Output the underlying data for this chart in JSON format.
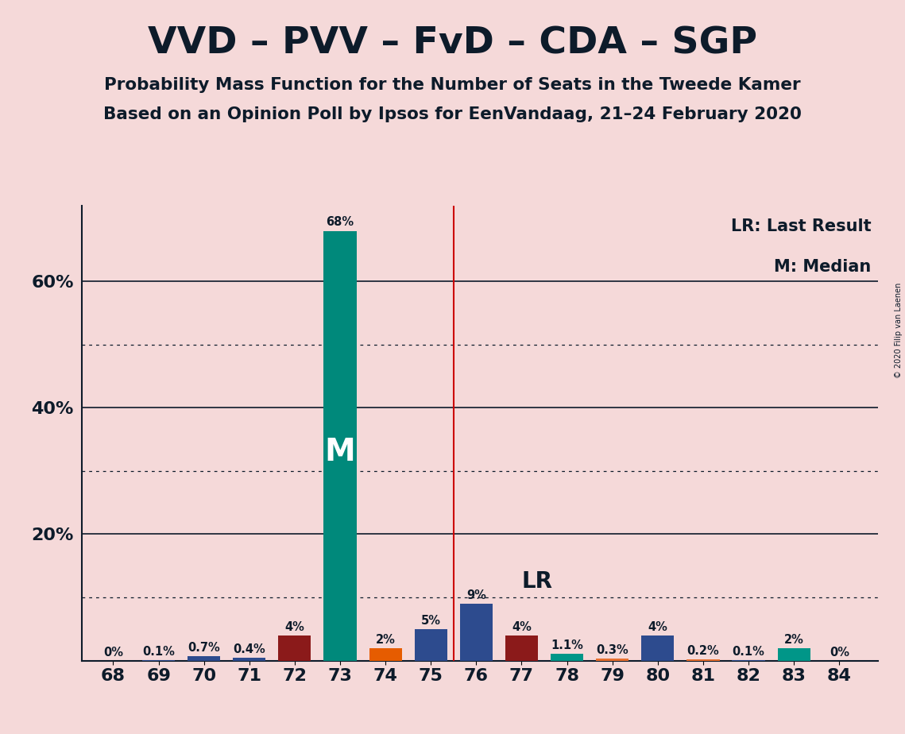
{
  "title": "VVD – PVV – FvD – CDA – SGP",
  "subtitle1": "Probability Mass Function for the Number of Seats in the Tweede Kamer",
  "subtitle2": "Based on an Opinion Poll by Ipsos for EenVandaag, 21–24 February 2020",
  "copyright": "© 2020 Filip van Laenen",
  "background_color": "#f5d9d9",
  "text_color": "#0d1b2a",
  "seats": [
    68,
    69,
    70,
    71,
    72,
    73,
    74,
    75,
    76,
    77,
    78,
    79,
    80,
    81,
    82,
    83,
    84
  ],
  "probabilities": [
    0.0,
    0.1,
    0.7,
    0.4,
    4.0,
    68.0,
    2.0,
    5.0,
    9.0,
    4.0,
    1.1,
    0.3,
    4.0,
    0.2,
    0.1,
    2.0,
    0.0
  ],
  "labels": [
    "0%",
    "0.1%",
    "0.7%",
    "0.4%",
    "4%",
    "68%",
    "2%",
    "5%",
    "9%",
    "4%",
    "1.1%",
    "0.3%",
    "4%",
    "0.2%",
    "0.1%",
    "2%",
    "0%"
  ],
  "bar_colors": [
    "#2d4b8e",
    "#2d4b8e",
    "#2d4b8e",
    "#2d4b8e",
    "#8b1a1a",
    "#00897b",
    "#e65c00",
    "#2d4b8e",
    "#2d4b8e",
    "#8b1a1a",
    "#009688",
    "#e87030",
    "#2d4b8e",
    "#e87030",
    "#2d4b8e",
    "#009688",
    "#e87030"
  ],
  "median_seat": 73,
  "last_result_seat": 75.5,
  "median_label": "M",
  "lr_label": "LR",
  "legend_lr": "LR: Last Result",
  "legend_m": "M: Median",
  "ylim_max": 72,
  "bar_width": 0.72,
  "xlim_min": 67.3,
  "xlim_max": 84.85
}
